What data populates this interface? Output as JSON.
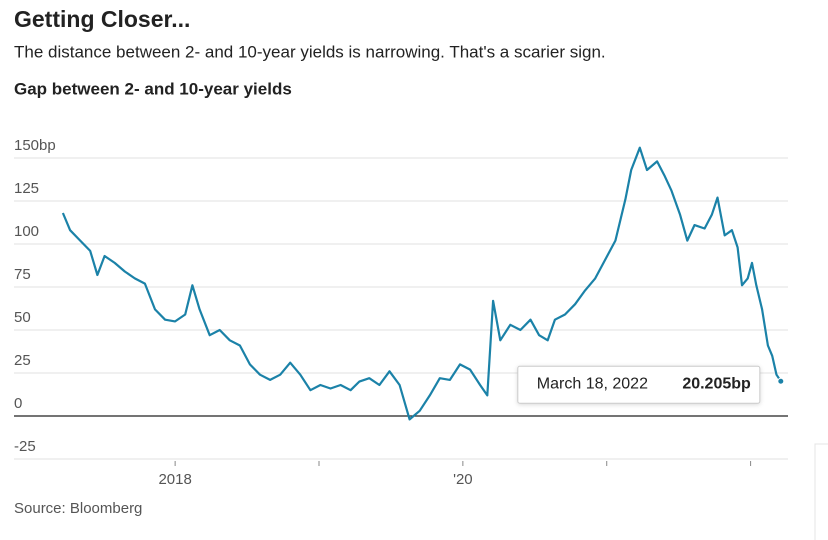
{
  "chart_data": {
    "type": "line",
    "title": "Getting Closer...",
    "subtitle": "The distance between 2- and 10-year yields is narrowing. That's a scarier sign.",
    "chart_title": "Gap between 2- and 10-year yields",
    "source": "Source: Bloomberg",
    "color": "#1b82a8",
    "x": [
      2017.22,
      2017.27,
      2017.34,
      2017.41,
      2017.46,
      2017.51,
      2017.58,
      2017.65,
      2017.72,
      2017.79,
      2017.86,
      2017.93,
      2018.0,
      2018.07,
      2018.12,
      2018.17,
      2018.24,
      2018.31,
      2018.38,
      2018.45,
      2018.52,
      2018.59,
      2018.66,
      2018.73,
      2018.8,
      2018.87,
      2018.94,
      2019.01,
      2019.08,
      2019.15,
      2019.22,
      2019.28,
      2019.35,
      2019.42,
      2019.49,
      2019.56,
      2019.63,
      2019.7,
      2019.77,
      2019.84,
      2019.91,
      2019.98,
      2020.05,
      2020.12,
      2020.17,
      2020.21,
      2020.26,
      2020.33,
      2020.4,
      2020.47,
      2020.53,
      2020.59,
      2020.64,
      2020.71,
      2020.78,
      2020.85,
      2020.92,
      2020.99,
      2021.06,
      2021.13,
      2021.17,
      2021.23,
      2021.28,
      2021.35,
      2021.4,
      2021.45,
      2021.51,
      2021.56,
      2021.61,
      2021.68,
      2021.73,
      2021.77,
      2021.82,
      2021.87,
      2021.91,
      2021.94,
      2021.98,
      2022.01,
      2022.04,
      2022.08,
      2022.12,
      2022.15,
      2022.18,
      2022.21
    ],
    "values": [
      118,
      108,
      102,
      96,
      82,
      93,
      89,
      84,
      80,
      77,
      62,
      56,
      55,
      59,
      76,
      62,
      47,
      50,
      44,
      41,
      30,
      24,
      21,
      24,
      31,
      24,
      15,
      18,
      16,
      18,
      15,
      20,
      22,
      18,
      26,
      18,
      -2,
      3,
      12,
      22,
      21,
      30,
      27,
      18,
      12,
      67,
      44,
      53,
      50,
      56,
      47,
      44,
      56,
      59,
      65,
      73,
      80,
      91,
      102,
      126,
      143,
      156,
      143,
      148,
      140,
      131,
      117,
      102,
      111,
      109,
      117,
      127,
      105,
      108,
      98,
      76,
      80,
      89,
      76,
      62,
      41,
      35,
      24,
      20.205
    ],
    "xlim": [
      2016.88,
      2022.26
    ],
    "ylim": [
      -25,
      150
    ],
    "yticks": [
      {
        "value": 150,
        "label": "150bp"
      },
      125,
      100,
      75,
      50,
      25,
      0,
      -25
    ],
    "xticks": [
      2018,
      {
        "value": 2019,
        "label": null
      },
      {
        "value": 2020,
        "label": "'20"
      },
      {
        "value": 2021,
        "label": null
      },
      {
        "value": 2022,
        "label": null
      }
    ],
    "grid": true,
    "tooltip": {
      "label": "March 18, 2022",
      "value": 20.205,
      "value_label": "20.205bp"
    }
  }
}
